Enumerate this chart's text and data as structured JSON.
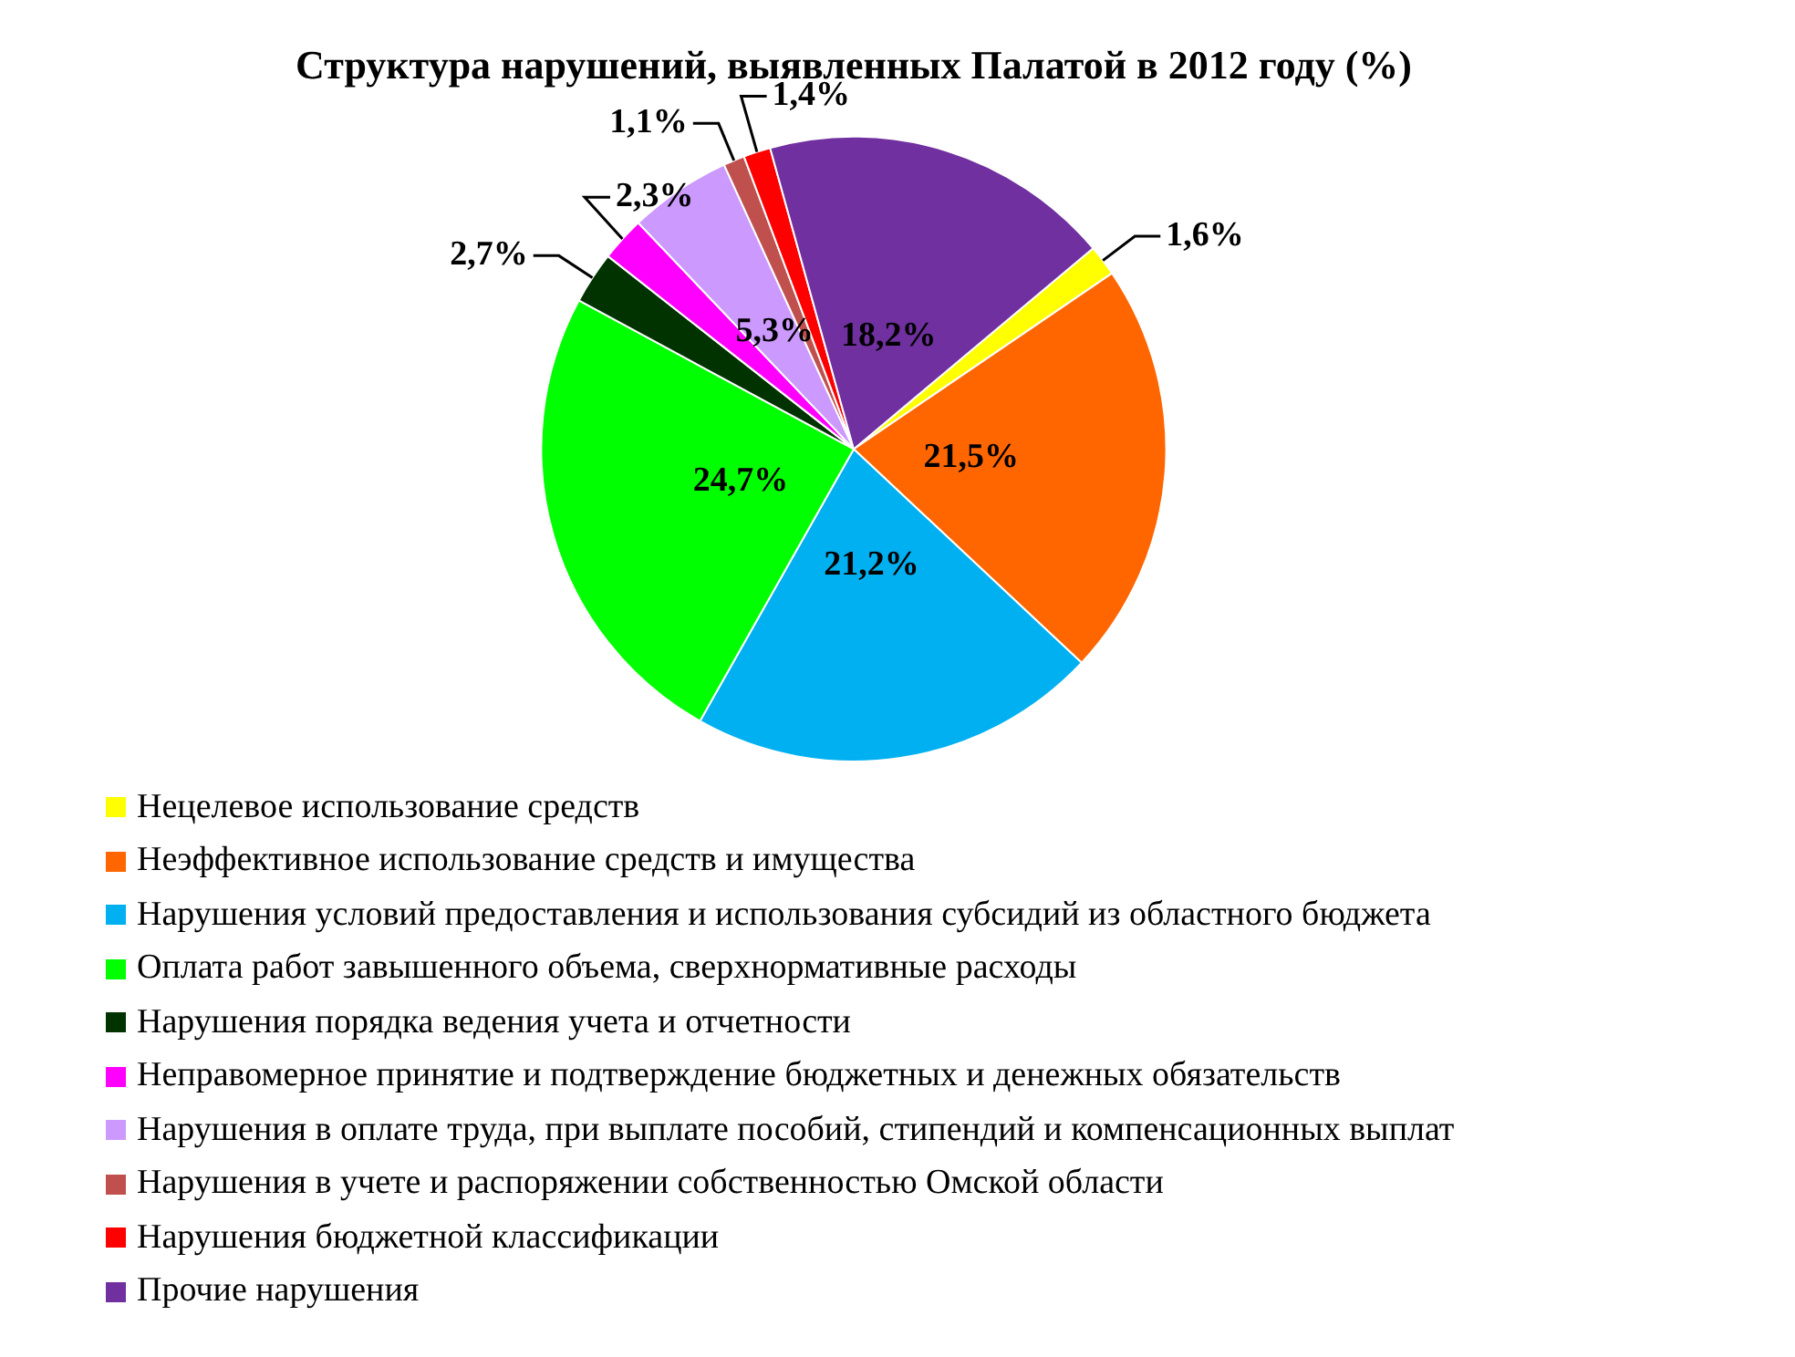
{
  "chart_data": {
    "type": "pie",
    "title": "Структура нарушений, выявленных Палатой в 2012 году (%)",
    "categories": [
      "Нецелевое использование средств",
      "Неэффективное использование средств и имущества",
      "Нарушения условий предоставления и использования субсидий из областного бюджета",
      "Оплата работ завышенного объема, сверхнормативные расходы",
      "Нарушения порядка ведения учета и отчетности",
      "Неправомерное принятие и подтверждение бюджетных и денежных обязательств",
      "Нарушения в оплате труда, при выплате пособий, стипендий и компенсационных выплат",
      "Нарушения в учете и распоряжении собственностью Омской области",
      "Нарушения бюджетной классификации",
      "Прочие нарушения"
    ],
    "values": [
      1.6,
      21.5,
      21.2,
      24.7,
      2.7,
      2.3,
      5.3,
      1.1,
      1.4,
      18.2
    ],
    "value_labels": [
      "1,6%",
      "21,5%",
      "21,2%",
      "24,7%",
      "2,7%",
      "2,3%",
      "5,3%",
      "1,1%",
      "1,4%",
      "18,2%"
    ],
    "colors": [
      "#ffff00",
      "#ff6600",
      "#00b0f0",
      "#00ff00",
      "#003300",
      "#ff00ff",
      "#cc99ff",
      "#c0504d",
      "#ff0000",
      "#7030a0"
    ],
    "legend": "bottom"
  }
}
